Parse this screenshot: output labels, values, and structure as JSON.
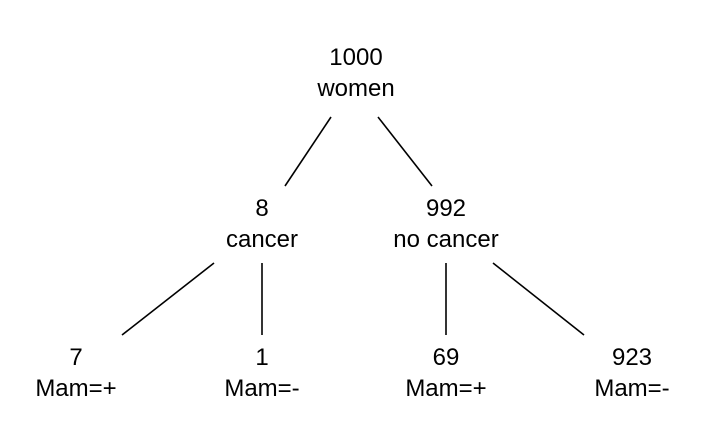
{
  "tree": {
    "root": {
      "count": "1000",
      "label": "women"
    },
    "cancer": {
      "count": "8",
      "label": "cancer"
    },
    "no_cancer": {
      "count": "992",
      "label": "no cancer"
    },
    "cancer_pos": {
      "count": "7",
      "label": "Mam=+"
    },
    "cancer_neg": {
      "count": "1",
      "label": "Mam=-"
    },
    "nocancer_pos": {
      "count": "69",
      "label": "Mam=+"
    },
    "nocancer_neg": {
      "count": "923",
      "label": "Mam=-"
    }
  },
  "colors": {
    "line": "#000000",
    "text": "#000000",
    "background": "#ffffff"
  }
}
